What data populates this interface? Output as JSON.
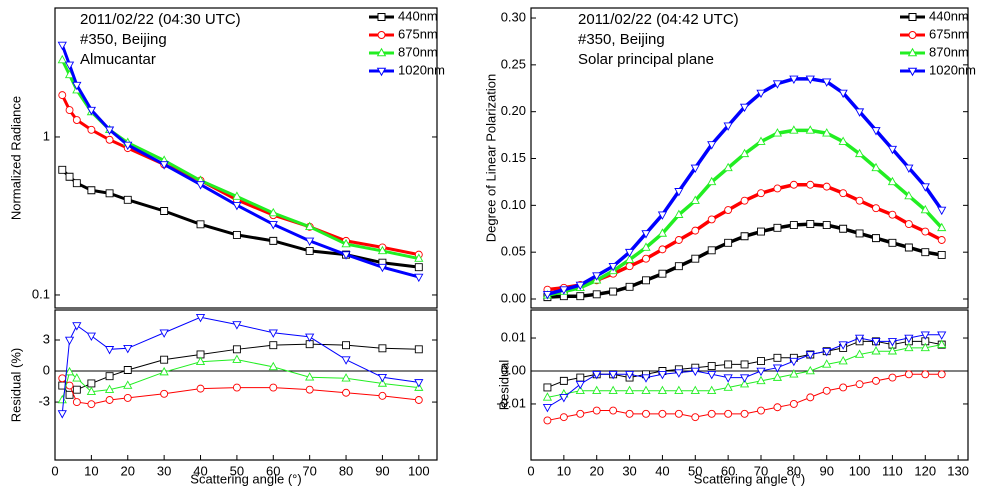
{
  "chart_data": [
    {
      "type": "line",
      "log_y": true,
      "ylabel": "Normalized Radiance",
      "legend": "upper right",
      "annotations": [
        "2011/02/22 (04:30 UTC)",
        "#350, Beijing",
        "Almucantar"
      ],
      "xlim": [
        0,
        105
      ],
      "ylim": [
        0.0827,
        6.55
      ],
      "yticks": [
        0.1,
        1
      ],
      "x": [
        2,
        4,
        6,
        10,
        15,
        20,
        30,
        40,
        50,
        60,
        70,
        80,
        90,
        100
      ],
      "series": [
        {
          "name": "440nm",
          "color": "#000000",
          "marker": "square",
          "values": [
            0.62,
            0.56,
            0.51,
            0.46,
            0.44,
            0.4,
            0.34,
            0.28,
            0.24,
            0.22,
            0.19,
            0.18,
            0.16,
            0.15
          ]
        },
        {
          "name": "675nm",
          "color": "#ff0000",
          "marker": "circle",
          "values": [
            1.84,
            1.48,
            1.28,
            1.11,
            0.96,
            0.85,
            0.67,
            0.53,
            0.4,
            0.32,
            0.27,
            0.22,
            0.2,
            0.18
          ]
        },
        {
          "name": "870nm",
          "color": "#22ee22",
          "marker": "triangle-up",
          "values": [
            3.07,
            2.47,
            1.98,
            1.44,
            1.11,
            0.92,
            0.71,
            0.53,
            0.42,
            0.33,
            0.27,
            0.21,
            0.19,
            0.17
          ]
        },
        {
          "name": "1020nm",
          "color": "#0000ff",
          "marker": "triangle-down",
          "values": [
            3.82,
            2.86,
            2.13,
            1.48,
            1.11,
            0.89,
            0.67,
            0.5,
            0.37,
            0.28,
            0.22,
            0.18,
            0.15,
            0.13
          ]
        }
      ]
    },
    {
      "type": "line",
      "ylabel": "Residual (%)",
      "xlabel": "Scattering angle (°)",
      "reference_line": 0,
      "xlim": [
        0,
        105
      ],
      "xticks": [
        0,
        10,
        20,
        30,
        40,
        50,
        60,
        70,
        80,
        90,
        100
      ],
      "ylim": [
        -8.6,
        5.9
      ],
      "yticks": [
        3,
        0,
        -3
      ],
      "x": [
        2,
        4,
        6,
        10,
        15,
        20,
        30,
        40,
        50,
        60,
        70,
        80,
        90,
        100
      ],
      "series": [
        {
          "name": "440nm",
          "color": "#000000",
          "marker": "square",
          "values": [
            -1.4,
            -2.3,
            -1.8,
            -1.2,
            -0.5,
            0.1,
            1.1,
            1.6,
            2.1,
            2.5,
            2.6,
            2.5,
            2.2,
            2.1
          ]
        },
        {
          "name": "675nm",
          "color": "#ff0000",
          "marker": "circle",
          "values": [
            -0.7,
            -1.4,
            -3.0,
            -3.2,
            -2.8,
            -2.6,
            -2.2,
            -1.7,
            -1.6,
            -1.6,
            -1.8,
            -2.1,
            -2.4,
            -2.8
          ]
        },
        {
          "name": "870nm",
          "color": "#22ee22",
          "marker": "triangle-up",
          "values": [
            -2.8,
            -0.1,
            -0.7,
            -2.0,
            -1.8,
            -1.4,
            -0.1,
            0.9,
            1.1,
            0.4,
            -0.6,
            -0.7,
            -1.2,
            -1.6
          ]
        },
        {
          "name": "1020nm",
          "color": "#0000ff",
          "marker": "triangle-down",
          "values": [
            -4.1,
            3.0,
            4.4,
            3.4,
            2.1,
            2.2,
            3.7,
            5.2,
            4.5,
            3.7,
            3.3,
            1.1,
            -0.6,
            -1.1
          ]
        }
      ]
    },
    {
      "type": "line",
      "ylabel": "Degree of Linear Polarization",
      "legend": "upper right",
      "annotations": [
        "2011/02/22 (04:42 UTC)",
        "#350, Beijing",
        "Solar principal plane"
      ],
      "xlim": [
        0,
        133
      ],
      "ylim": [
        -0.0096,
        0.3107
      ],
      "yticks": [
        {
          "value": 0,
          "label": "0.00"
        },
        {
          "value": 0.05,
          "label": "0.05"
        },
        {
          "value": 0.1,
          "label": "0.10"
        },
        {
          "value": 0.15,
          "label": "0.15"
        },
        {
          "value": 0.2,
          "label": "0.20"
        },
        {
          "value": 0.25,
          "label": "0.25"
        },
        {
          "value": 0.3,
          "label": "0.30"
        }
      ],
      "x": [
        5,
        10,
        15,
        20,
        25,
        30,
        35,
        40,
        45,
        50,
        55,
        60,
        65,
        70,
        75,
        80,
        85,
        90,
        95,
        100,
        105,
        110,
        115,
        120,
        125
      ],
      "series": [
        {
          "name": "440nm",
          "color": "#000000",
          "marker": "square",
          "values": [
            0.002,
            0.003,
            0.003,
            0.005,
            0.008,
            0.013,
            0.02,
            0.027,
            0.035,
            0.043,
            0.052,
            0.06,
            0.067,
            0.072,
            0.076,
            0.079,
            0.08,
            0.079,
            0.075,
            0.07,
            0.065,
            0.06,
            0.055,
            0.05,
            0.047
          ]
        },
        {
          "name": "675nm",
          "color": "#ff0000",
          "marker": "circle",
          "values": [
            0.01,
            0.012,
            0.015,
            0.02,
            0.027,
            0.035,
            0.043,
            0.053,
            0.063,
            0.073,
            0.085,
            0.095,
            0.105,
            0.113,
            0.118,
            0.122,
            0.122,
            0.12,
            0.113,
            0.105,
            0.097,
            0.09,
            0.08,
            0.072,
            0.063
          ]
        },
        {
          "name": "870nm",
          "color": "#22ee22",
          "marker": "triangle-up",
          "values": [
            0.004,
            0.008,
            0.012,
            0.02,
            0.03,
            0.042,
            0.055,
            0.07,
            0.09,
            0.105,
            0.125,
            0.14,
            0.155,
            0.168,
            0.177,
            0.18,
            0.18,
            0.177,
            0.168,
            0.155,
            0.14,
            0.125,
            0.11,
            0.095,
            0.076
          ]
        },
        {
          "name": "1020nm",
          "color": "#0000ff",
          "marker": "triangle-down",
          "values": [
            0.005,
            0.01,
            0.015,
            0.025,
            0.035,
            0.05,
            0.07,
            0.09,
            0.115,
            0.14,
            0.165,
            0.185,
            0.205,
            0.22,
            0.23,
            0.235,
            0.235,
            0.232,
            0.22,
            0.2,
            0.18,
            0.16,
            0.14,
            0.12,
            0.095
          ]
        }
      ]
    },
    {
      "type": "line",
      "ylabel": "Residual",
      "xlabel": "Scattering angle (°)",
      "reference_line": 0,
      "xlim": [
        0,
        133
      ],
      "xticks": [
        0,
        10,
        20,
        30,
        40,
        50,
        60,
        70,
        80,
        90,
        100,
        110,
        120,
        130
      ],
      "ylim": [
        -0.027,
        0.0185
      ],
      "yticks": [
        0.01,
        {
          "value": 0,
          "label": "0.00"
        },
        -0.01
      ],
      "x": [
        5,
        10,
        15,
        20,
        25,
        30,
        35,
        40,
        45,
        50,
        55,
        60,
        65,
        70,
        75,
        80,
        85,
        90,
        95,
        100,
        105,
        110,
        115,
        120,
        125
      ],
      "series": [
        {
          "name": "440nm",
          "color": "#000000",
          "marker": "square",
          "values": [
            -0.005,
            -0.003,
            -0.002,
            -0.001,
            -0.001,
            -0.002,
            -0.001,
            0,
            0.0005,
            0.001,
            0.0015,
            0.002,
            0.002,
            0.003,
            0.004,
            0.004,
            0.005,
            0.006,
            0.007,
            0.009,
            0.009,
            0.008,
            0.009,
            0.009,
            0.008
          ]
        },
        {
          "name": "675nm",
          "color": "#ff0000",
          "marker": "circle",
          "values": [
            -0.015,
            -0.014,
            -0.013,
            -0.012,
            -0.012,
            -0.013,
            -0.013,
            -0.013,
            -0.013,
            -0.014,
            -0.013,
            -0.013,
            -0.013,
            -0.012,
            -0.011,
            -0.01,
            -0.008,
            -0.006,
            -0.005,
            -0.004,
            -0.003,
            -0.002,
            -0.001,
            -0.001,
            -0.001
          ]
        },
        {
          "name": "870nm",
          "color": "#22ee22",
          "marker": "triangle-up",
          "values": [
            -0.008,
            -0.007,
            -0.006,
            -0.006,
            -0.006,
            -0.006,
            -0.006,
            -0.006,
            -0.006,
            -0.006,
            -0.006,
            -0.005,
            -0.004,
            -0.003,
            -0.002,
            -0.001,
            0,
            0.002,
            0.003,
            0.005,
            0.006,
            0.006,
            0.007,
            0.007,
            0.008
          ]
        },
        {
          "name": "1020nm",
          "color": "#0000ff",
          "marker": "triangle-down",
          "values": [
            -0.011,
            -0.008,
            -0.004,
            -0.001,
            -0.001,
            -0.001,
            -0.002,
            -0.001,
            -0.0005,
            0,
            -0.001,
            -0.002,
            -0.002,
            0,
            0.001,
            0.003,
            0.005,
            0.006,
            0.008,
            0.01,
            0.009,
            0.009,
            0.01,
            0.011,
            0.011
          ]
        }
      ]
    }
  ]
}
